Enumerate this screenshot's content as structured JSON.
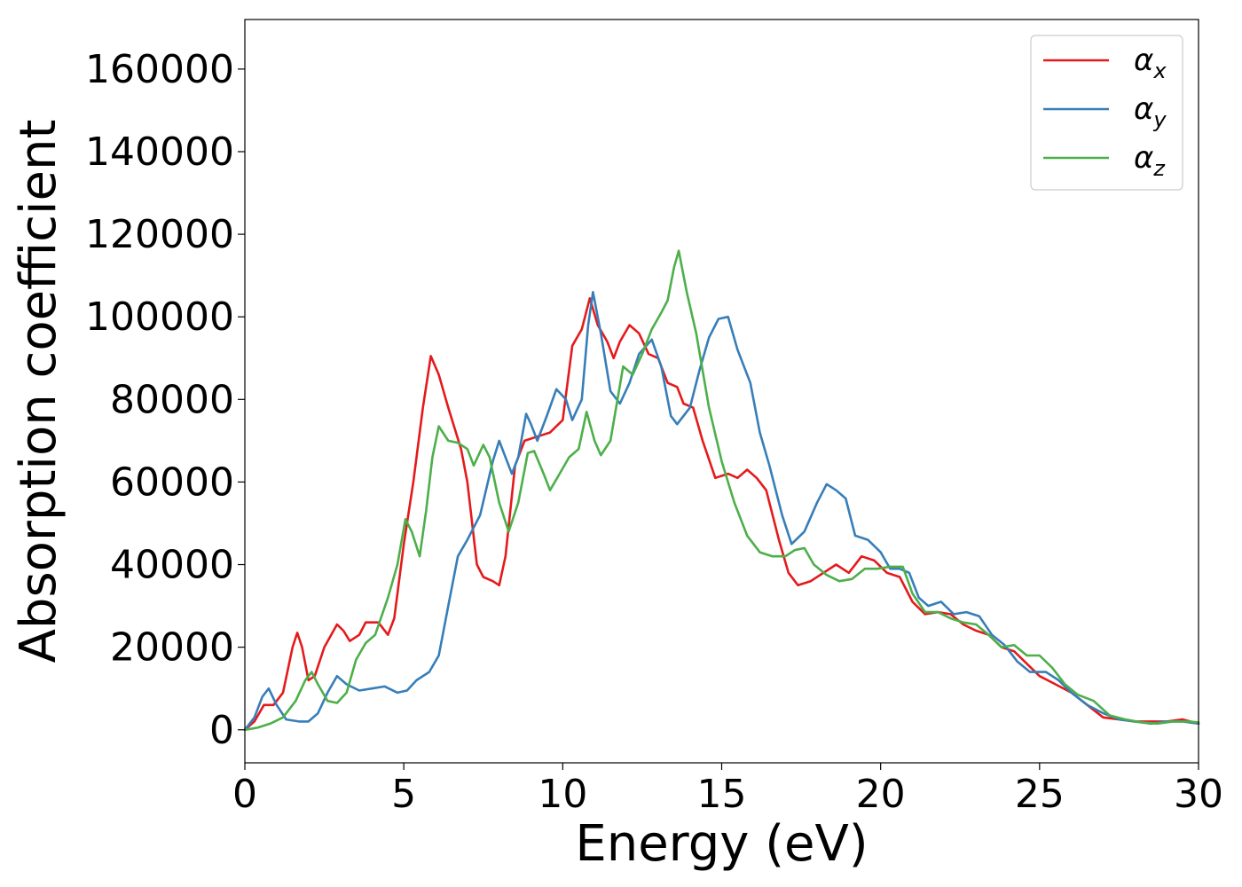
{
  "chart_data": {
    "type": "line",
    "xlabel": "Energy (eV)",
    "ylabel": "Absorption coefficient",
    "xlim": [
      0,
      30
    ],
    "ylim": [
      -8000,
      172000
    ],
    "xticks": [
      "0",
      "5",
      "10",
      "15",
      "20",
      "25",
      "30"
    ],
    "yticks": [
      "0",
      "20000",
      "40000",
      "60000",
      "80000",
      "100000",
      "120000",
      "140000",
      "160000"
    ],
    "grid": false,
    "legend_position": "top-right",
    "series": [
      {
        "name": "α",
        "subscript": "x",
        "color": "#e41a1c",
        "points": [
          [
            0,
            0
          ],
          [
            0.3,
            2000
          ],
          [
            0.6,
            6000
          ],
          [
            0.9,
            6000
          ],
          [
            1.2,
            9000
          ],
          [
            1.5,
            20000
          ],
          [
            1.65,
            23500
          ],
          [
            1.8,
            20000
          ],
          [
            2.0,
            12000
          ],
          [
            2.2,
            13000
          ],
          [
            2.5,
            20000
          ],
          [
            2.9,
            25500
          ],
          [
            3.1,
            24000
          ],
          [
            3.3,
            21500
          ],
          [
            3.6,
            23000
          ],
          [
            3.8,
            26000
          ],
          [
            4.2,
            26000
          ],
          [
            4.5,
            23000
          ],
          [
            4.7,
            27000
          ],
          [
            5.0,
            45000
          ],
          [
            5.3,
            60000
          ],
          [
            5.6,
            78000
          ],
          [
            5.85,
            90500
          ],
          [
            6.1,
            86000
          ],
          [
            6.4,
            78000
          ],
          [
            6.8,
            68000
          ],
          [
            7.0,
            60000
          ],
          [
            7.3,
            40000
          ],
          [
            7.5,
            37000
          ],
          [
            7.8,
            36000
          ],
          [
            8.0,
            35000
          ],
          [
            8.2,
            42000
          ],
          [
            8.5,
            64000
          ],
          [
            8.8,
            70000
          ],
          [
            9.2,
            71000
          ],
          [
            9.6,
            72000
          ],
          [
            10.0,
            75000
          ],
          [
            10.3,
            93000
          ],
          [
            10.6,
            97000
          ],
          [
            10.85,
            104500
          ],
          [
            11.1,
            98000
          ],
          [
            11.4,
            94000
          ],
          [
            11.6,
            90000
          ],
          [
            11.8,
            94000
          ],
          [
            12.1,
            98000
          ],
          [
            12.4,
            96000
          ],
          [
            12.7,
            91000
          ],
          [
            13.0,
            90000
          ],
          [
            13.3,
            84000
          ],
          [
            13.6,
            83000
          ],
          [
            13.8,
            79000
          ],
          [
            14.1,
            78000
          ],
          [
            14.4,
            70000
          ],
          [
            14.8,
            61000
          ],
          [
            15.2,
            62000
          ],
          [
            15.5,
            61000
          ],
          [
            15.8,
            63000
          ],
          [
            16.1,
            61000
          ],
          [
            16.4,
            58000
          ],
          [
            16.8,
            46000
          ],
          [
            17.1,
            38000
          ],
          [
            17.4,
            35000
          ],
          [
            17.8,
            36000
          ],
          [
            18.2,
            38000
          ],
          [
            18.6,
            40000
          ],
          [
            19.0,
            38000
          ],
          [
            19.4,
            42000
          ],
          [
            19.8,
            41000
          ],
          [
            20.2,
            38000
          ],
          [
            20.6,
            37000
          ],
          [
            21.0,
            31000
          ],
          [
            21.4,
            28000
          ],
          [
            21.8,
            28500
          ],
          [
            22.2,
            28000
          ],
          [
            22.6,
            25500
          ],
          [
            23.0,
            24000
          ],
          [
            23.4,
            23000
          ],
          [
            23.8,
            20000
          ],
          [
            24.2,
            19000
          ],
          [
            24.6,
            16000
          ],
          [
            25.0,
            13000
          ],
          [
            25.5,
            11000
          ],
          [
            26.0,
            9000
          ],
          [
            26.5,
            6000
          ],
          [
            27.0,
            3000
          ],
          [
            27.5,
            2500
          ],
          [
            28.0,
            2000
          ],
          [
            28.5,
            2000
          ],
          [
            29.0,
            2000
          ],
          [
            29.5,
            2500
          ],
          [
            30,
            1500
          ]
        ]
      },
      {
        "name": "α",
        "subscript": "y",
        "color": "#377eb8",
        "points": [
          [
            0,
            0
          ],
          [
            0.3,
            3000
          ],
          [
            0.55,
            8000
          ],
          [
            0.75,
            10000
          ],
          [
            1.0,
            6000
          ],
          [
            1.3,
            2500
          ],
          [
            1.7,
            2000
          ],
          [
            2.0,
            2000
          ],
          [
            2.3,
            4000
          ],
          [
            2.6,
            9000
          ],
          [
            2.9,
            13000
          ],
          [
            3.2,
            11000
          ],
          [
            3.6,
            9500
          ],
          [
            4.0,
            10000
          ],
          [
            4.4,
            10500
          ],
          [
            4.8,
            9000
          ],
          [
            5.1,
            9500
          ],
          [
            5.4,
            12000
          ],
          [
            5.8,
            14000
          ],
          [
            6.1,
            18000
          ],
          [
            6.4,
            30000
          ],
          [
            6.7,
            42000
          ],
          [
            7.0,
            46000
          ],
          [
            7.4,
            52000
          ],
          [
            7.8,
            65000
          ],
          [
            8.0,
            70000
          ],
          [
            8.2,
            66000
          ],
          [
            8.4,
            62000
          ],
          [
            8.6,
            66000
          ],
          [
            8.85,
            76500
          ],
          [
            9.0,
            74000
          ],
          [
            9.2,
            70000
          ],
          [
            9.5,
            76000
          ],
          [
            9.8,
            82500
          ],
          [
            10.1,
            80000
          ],
          [
            10.3,
            75000
          ],
          [
            10.6,
            80000
          ],
          [
            10.8,
            98000
          ],
          [
            10.95,
            106000
          ],
          [
            11.2,
            96000
          ],
          [
            11.5,
            82000
          ],
          [
            11.8,
            79000
          ],
          [
            12.1,
            84000
          ],
          [
            12.4,
            91000
          ],
          [
            12.8,
            94500
          ],
          [
            13.1,
            88000
          ],
          [
            13.4,
            76000
          ],
          [
            13.6,
            74000
          ],
          [
            14.0,
            78000
          ],
          [
            14.3,
            87000
          ],
          [
            14.6,
            95000
          ],
          [
            14.9,
            99500
          ],
          [
            15.2,
            100000
          ],
          [
            15.5,
            92000
          ],
          [
            15.9,
            84000
          ],
          [
            16.2,
            72000
          ],
          [
            16.5,
            64000
          ],
          [
            16.9,
            52000
          ],
          [
            17.2,
            45000
          ],
          [
            17.6,
            48000
          ],
          [
            18.0,
            55000
          ],
          [
            18.3,
            59500
          ],
          [
            18.6,
            58000
          ],
          [
            18.9,
            56000
          ],
          [
            19.2,
            47000
          ],
          [
            19.6,
            46000
          ],
          [
            20.0,
            43000
          ],
          [
            20.3,
            39000
          ],
          [
            20.6,
            39000
          ],
          [
            20.9,
            38000
          ],
          [
            21.2,
            32000
          ],
          [
            21.5,
            30000
          ],
          [
            21.9,
            31000
          ],
          [
            22.3,
            28000
          ],
          [
            22.7,
            28500
          ],
          [
            23.1,
            27500
          ],
          [
            23.5,
            23000
          ],
          [
            23.9,
            20500
          ],
          [
            24.3,
            16500
          ],
          [
            24.7,
            14000
          ],
          [
            25.2,
            14000
          ],
          [
            25.6,
            12000
          ],
          [
            26.0,
            9000
          ],
          [
            26.5,
            6000
          ],
          [
            27.0,
            4000
          ],
          [
            27.5,
            2500
          ],
          [
            28.0,
            2000
          ],
          [
            28.5,
            1500
          ],
          [
            29.0,
            2000
          ],
          [
            29.5,
            2000
          ],
          [
            30,
            1500
          ]
        ]
      },
      {
        "name": "α",
        "subscript": "z",
        "color": "#4daf4a",
        "points": [
          [
            0,
            0
          ],
          [
            0.4,
            500
          ],
          [
            0.8,
            1500
          ],
          [
            1.2,
            3000
          ],
          [
            1.6,
            7000
          ],
          [
            1.9,
            12000
          ],
          [
            2.1,
            14000
          ],
          [
            2.3,
            11000
          ],
          [
            2.6,
            7000
          ],
          [
            2.9,
            6500
          ],
          [
            3.2,
            9000
          ],
          [
            3.5,
            17000
          ],
          [
            3.8,
            21000
          ],
          [
            4.1,
            23000
          ],
          [
            4.5,
            32000
          ],
          [
            4.8,
            40000
          ],
          [
            5.05,
            51000
          ],
          [
            5.25,
            48000
          ],
          [
            5.5,
            42000
          ],
          [
            5.7,
            53000
          ],
          [
            5.9,
            66000
          ],
          [
            6.1,
            73500
          ],
          [
            6.4,
            70000
          ],
          [
            6.7,
            69500
          ],
          [
            7.0,
            68000
          ],
          [
            7.2,
            64000
          ],
          [
            7.5,
            69000
          ],
          [
            7.7,
            66000
          ],
          [
            8.0,
            55000
          ],
          [
            8.3,
            48000
          ],
          [
            8.6,
            55000
          ],
          [
            8.9,
            67000
          ],
          [
            9.1,
            67500
          ],
          [
            9.4,
            62000
          ],
          [
            9.6,
            58000
          ],
          [
            9.9,
            62000
          ],
          [
            10.2,
            66000
          ],
          [
            10.5,
            68000
          ],
          [
            10.75,
            77000
          ],
          [
            11.0,
            70000
          ],
          [
            11.2,
            66500
          ],
          [
            11.5,
            70000
          ],
          [
            11.9,
            88000
          ],
          [
            12.2,
            86000
          ],
          [
            12.5,
            91000
          ],
          [
            12.8,
            97000
          ],
          [
            13.1,
            101000
          ],
          [
            13.3,
            104000
          ],
          [
            13.5,
            112000
          ],
          [
            13.65,
            116000
          ],
          [
            13.9,
            106000
          ],
          [
            14.2,
            96000
          ],
          [
            14.6,
            78000
          ],
          [
            15.0,
            65000
          ],
          [
            15.4,
            55000
          ],
          [
            15.8,
            47000
          ],
          [
            16.2,
            43000
          ],
          [
            16.6,
            42000
          ],
          [
            17.0,
            42000
          ],
          [
            17.3,
            43500
          ],
          [
            17.6,
            44000
          ],
          [
            17.9,
            40000
          ],
          [
            18.3,
            37500
          ],
          [
            18.7,
            36000
          ],
          [
            19.1,
            36500
          ],
          [
            19.5,
            39000
          ],
          [
            19.9,
            39000
          ],
          [
            20.3,
            39500
          ],
          [
            20.7,
            39500
          ],
          [
            21.0,
            33000
          ],
          [
            21.4,
            28500
          ],
          [
            21.8,
            28500
          ],
          [
            22.2,
            27000
          ],
          [
            22.6,
            26000
          ],
          [
            23.0,
            25500
          ],
          [
            23.4,
            23000
          ],
          [
            23.8,
            20000
          ],
          [
            24.2,
            20500
          ],
          [
            24.6,
            18000
          ],
          [
            25.0,
            18000
          ],
          [
            25.4,
            15000
          ],
          [
            25.8,
            11000
          ],
          [
            26.2,
            8500
          ],
          [
            26.7,
            7000
          ],
          [
            27.2,
            3500
          ],
          [
            27.7,
            2500
          ],
          [
            28.2,
            1800
          ],
          [
            28.7,
            1500
          ],
          [
            29.2,
            2000
          ],
          [
            29.7,
            2000
          ],
          [
            30,
            1800
          ]
        ]
      }
    ]
  }
}
